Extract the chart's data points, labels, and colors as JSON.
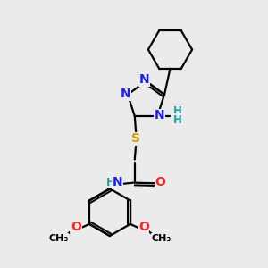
{
  "bg_color": "#ebebeb",
  "atom_colors": {
    "C": "#000000",
    "N": "#1a1aff",
    "O": "#ff2020",
    "S": "#c8a000",
    "H": "#20a0a0"
  },
  "bond_color": "#000000",
  "bond_width": 1.6,
  "font_size_atom": 10,
  "font_size_small": 8.5
}
